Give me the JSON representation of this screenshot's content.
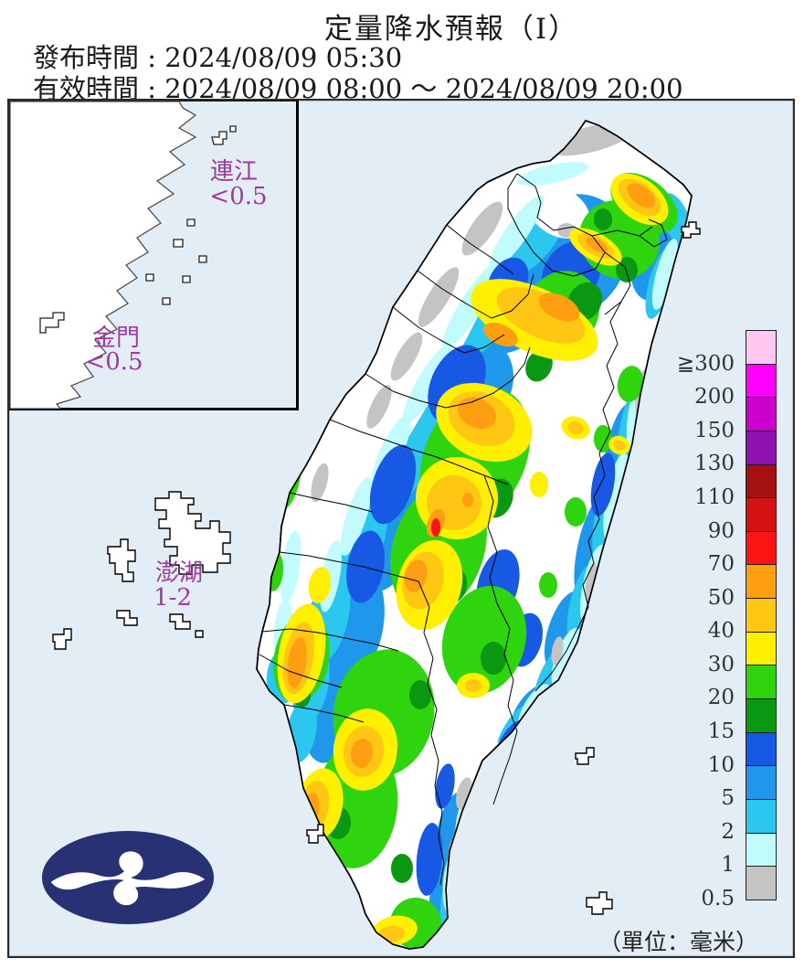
{
  "header": {
    "title": "定量降水預報（Ⅰ）",
    "issue_time": {
      "label": "發布時間",
      "separator": " : ",
      "value": "2024/08/09 05:30"
    },
    "valid_time": {
      "label": "有效時間",
      "separator": " : ",
      "value": "2024/08/09 08:00 ～ 2024/08/09 20:00"
    }
  },
  "map": {
    "sea_color": "#E3EDF6",
    "label_color": "#9F3A9F",
    "islands": {
      "lianjiang": {
        "name": "連江",
        "value": "<0.5"
      },
      "kinmen": {
        "name": "金門",
        "value": "<0.5"
      },
      "penghu": {
        "name": "澎湖",
        "value": "1-2"
      }
    }
  },
  "legend": {
    "unit_label": "（單位：毫米）",
    "thresholds": [
      "≧300",
      "200",
      "150",
      "130",
      "110",
      "90",
      "70",
      "50",
      "40",
      "30",
      "20",
      "15",
      "10",
      "5",
      "2",
      "1",
      "0.5"
    ],
    "colors_top_to_bottom": [
      "#FFC8F0",
      "#FF00FF",
      "#CC00CC",
      "#9012B0",
      "#A31111",
      "#D51212",
      "#FB1414",
      "#FF9E10",
      "#FFC613",
      "#FEF000",
      "#2FD30E",
      "#0A9712",
      "#1759E5",
      "#1F97EA",
      "#2BC7EF",
      "#C2FBFE",
      "#C4C4C4"
    ]
  },
  "logo": {
    "color": "#283173"
  }
}
